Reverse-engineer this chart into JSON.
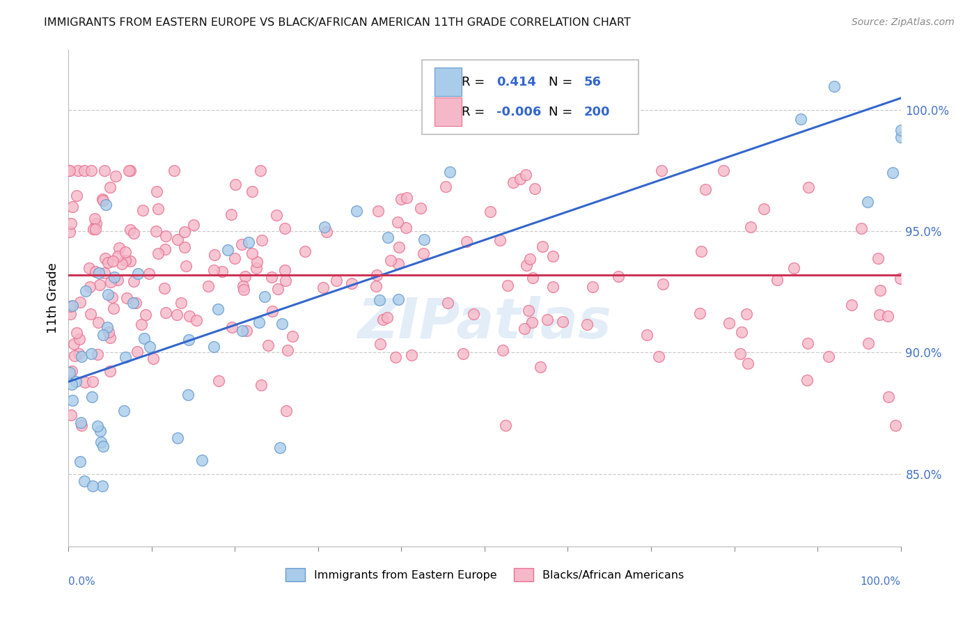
{
  "title": "IMMIGRANTS FROM EASTERN EUROPE VS BLACK/AFRICAN AMERICAN 11TH GRADE CORRELATION CHART",
  "source": "Source: ZipAtlas.com",
  "ylabel": "11th Grade",
  "right_yticks": [
    "85.0%",
    "90.0%",
    "95.0%",
    "100.0%"
  ],
  "right_ytick_positions": [
    0.85,
    0.9,
    0.95,
    1.0
  ],
  "legend1_label": "Immigrants from Eastern Europe",
  "legend2_label": "Blacks/African Americans",
  "R1": "0.414",
  "N1": "56",
  "R2": "-0.006",
  "N2": "200",
  "color_blue": "#A8CCEA",
  "color_pink": "#F5B8C8",
  "color_blue_edge": "#6699CC",
  "color_pink_edge": "#E87090",
  "trendline_blue": "#3366CC",
  "trendline_pink": "#CC3355",
  "watermark": "ZIPatlas",
  "background_color": "#FFFFFF",
  "ymin": 0.82,
  "ymax": 1.025,
  "xmin": 0.0,
  "xmax": 1.0,
  "blue_trend_x0": 0.0,
  "blue_trend_y0": 0.888,
  "blue_trend_x1": 1.0,
  "blue_trend_y1": 1.005,
  "pink_trend_y": 0.932
}
